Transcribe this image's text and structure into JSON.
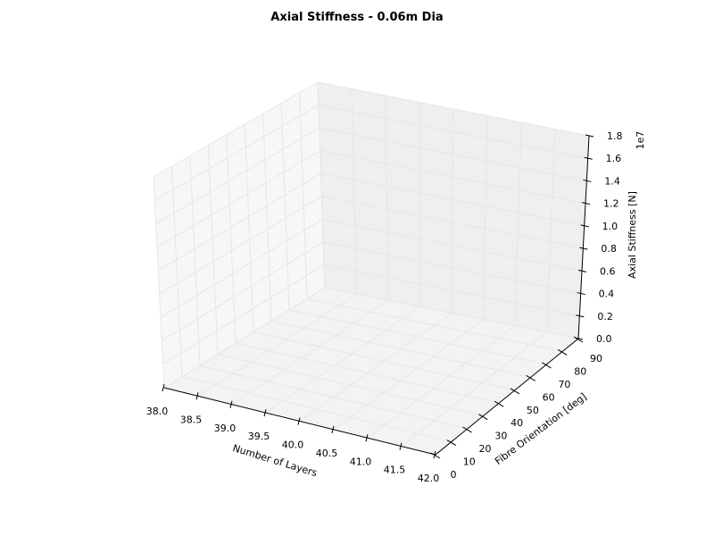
{
  "chart_data": {
    "type": "surface3d",
    "title": "Axial Stiffness - 0.06m Dia",
    "xlabel": "Number of Layers",
    "ylabel": "Fibre Orientation [deg]",
    "zlabel": "Axial Stiffness [N]",
    "z_offset_label": "1e7",
    "xlim": [
      38.0,
      42.0
    ],
    "ylim": [
      0,
      90
    ],
    "zlim": [
      0.0,
      1.8
    ],
    "x_ticks": [
      "38.0",
      "38.5",
      "39.0",
      "39.5",
      "40.0",
      "40.5",
      "41.0",
      "41.5",
      "42.0"
    ],
    "y_ticks": [
      "0",
      "10",
      "20",
      "30",
      "40",
      "50",
      "60",
      "70",
      "80",
      "90"
    ],
    "z_ticks": [
      "0.0",
      "0.2",
      "0.4",
      "0.6",
      "0.8",
      "1.0",
      "1.2",
      "1.4",
      "1.6",
      "1.8"
    ],
    "grid": true,
    "series": []
  }
}
